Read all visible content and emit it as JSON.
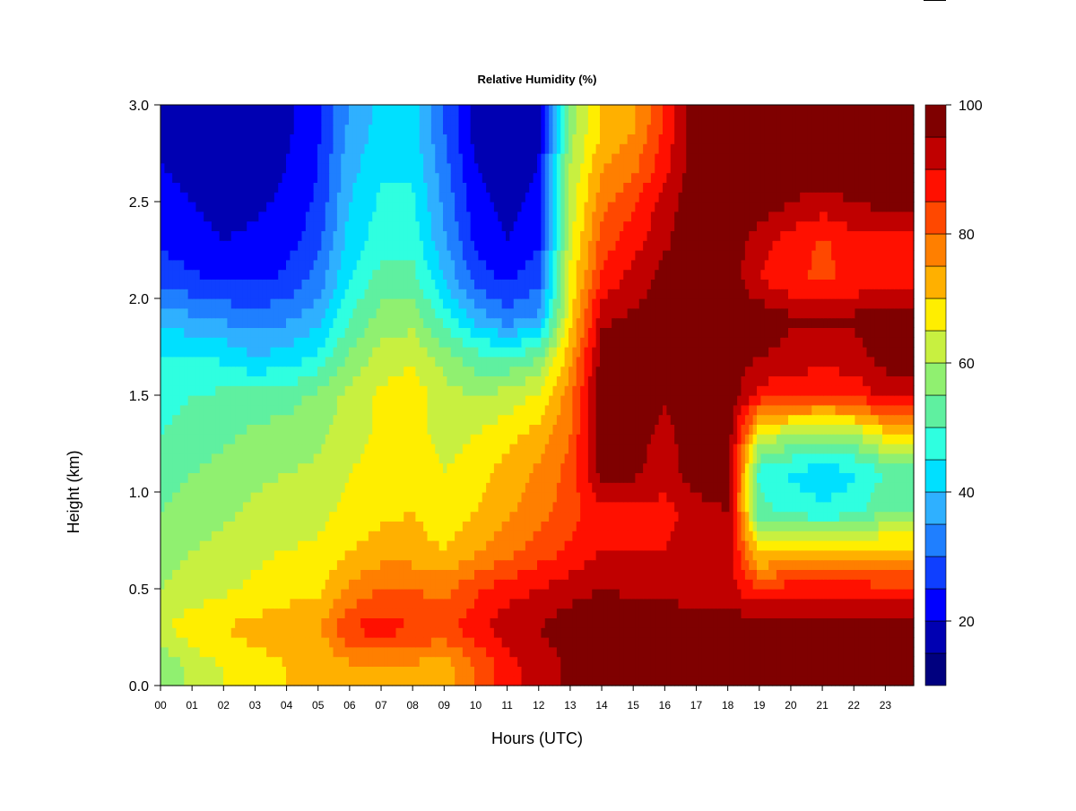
{
  "chart_data": {
    "type": "heatmap",
    "title": "Relative Humidity (%)",
    "xlabel": "Hours (UTC)",
    "ylabel": "Height (km)",
    "x_ticks": [
      "00",
      "01",
      "02",
      "03",
      "04",
      "05",
      "06",
      "07",
      "08",
      "09",
      "10",
      "11",
      "12",
      "13",
      "14",
      "15",
      "16",
      "17",
      "18",
      "19",
      "20",
      "21",
      "22",
      "23"
    ],
    "xlim": [
      0,
      23.9
    ],
    "y_ticks": [
      "0.0",
      "0.5",
      "1.0",
      "1.5",
      "2.0",
      "2.5",
      "3.0"
    ],
    "ylim": [
      0,
      3.0
    ],
    "colorbar": {
      "ticks": [
        "20",
        "40",
        "60",
        "80",
        "100"
      ],
      "range": [
        10,
        100
      ],
      "levels": [
        10,
        15,
        20,
        25,
        30,
        35,
        40,
        45,
        50,
        55,
        60,
        65,
        70,
        75,
        80,
        85,
        90,
        95,
        100
      ],
      "colors": [
        "#00007F",
        "#0000B2",
        "#0000FF",
        "#0F3FFF",
        "#1F7FFF",
        "#2FB0FF",
        "#00E0FF",
        "#2FFFE0",
        "#5FF0A0",
        "#90F070",
        "#C8F040",
        "#FFEE00",
        "#FFB000",
        "#FF7F00",
        "#FF4800",
        "#FF1000",
        "#C00000",
        "#7F0000"
      ]
    },
    "x_hours": [
      0,
      1,
      2,
      3,
      4,
      5,
      6,
      7,
      8,
      9,
      10,
      11,
      12,
      13,
      14,
      15,
      16,
      17,
      18,
      19,
      20,
      21,
      22,
      23
    ],
    "heights_km": [
      0.1,
      0.3,
      0.5,
      0.7,
      0.9,
      1.1,
      1.3,
      1.5,
      1.7,
      1.9,
      2.1,
      2.3,
      2.5,
      2.7,
      2.9
    ],
    "rh_grid": [
      [
        55,
        62,
        65,
        68,
        70,
        70,
        74,
        75,
        74,
        72,
        80,
        88,
        92,
        96,
        97,
        97,
        97,
        98,
        98,
        99,
        99,
        99,
        99,
        99
      ],
      [
        64,
        68,
        70,
        72,
        73,
        74,
        85,
        88,
        85,
        84,
        88,
        93,
        95,
        98,
        99,
        99,
        99,
        99,
        98,
        99,
        99,
        99,
        99,
        99
      ],
      [
        60,
        62,
        64,
        66,
        68,
        69,
        76,
        80,
        80,
        78,
        84,
        88,
        90,
        93,
        95,
        94,
        93,
        92,
        92,
        85,
        88,
        88,
        88,
        86
      ],
      [
        58,
        60,
        62,
        64,
        65,
        66,
        70,
        72,
        72,
        70,
        74,
        78,
        82,
        86,
        90,
        90,
        90,
        93,
        95,
        68,
        70,
        72,
        70,
        72
      ],
      [
        55,
        57,
        59,
        61,
        62,
        63,
        67,
        69,
        70,
        67,
        70,
        74,
        78,
        83,
        88,
        89,
        88,
        92,
        95,
        52,
        48,
        46,
        48,
        55
      ],
      [
        53,
        55,
        57,
        59,
        60,
        61,
        65,
        67,
        68,
        65,
        68,
        72,
        76,
        82,
        97,
        96,
        92,
        99,
        99,
        48,
        44,
        42,
        44,
        50
      ],
      [
        50,
        52,
        54,
        56,
        57,
        59,
        63,
        66,
        67,
        63,
        65,
        68,
        72,
        80,
        99,
        98,
        93,
        99,
        99,
        65,
        60,
        58,
        60,
        68
      ],
      [
        48,
        50,
        51,
        52,
        53,
        56,
        62,
        66,
        68,
        62,
        60,
        62,
        66,
        78,
        99,
        99,
        96,
        99,
        99,
        88,
        86,
        84,
        86,
        92
      ],
      [
        45,
        46,
        44,
        40,
        42,
        46,
        56,
        62,
        64,
        58,
        52,
        50,
        54,
        74,
        97,
        98,
        96,
        99,
        99,
        95,
        93,
        93,
        93,
        97
      ],
      [
        38,
        36,
        34,
        32,
        34,
        38,
        50,
        57,
        58,
        48,
        38,
        32,
        36,
        68,
        94,
        96,
        97,
        99,
        99,
        99,
        96,
        96,
        96,
        99
      ],
      [
        28,
        26,
        24,
        24,
        26,
        32,
        45,
        52,
        52,
        40,
        28,
        24,
        28,
        66,
        86,
        92,
        97,
        99,
        99,
        90,
        86,
        84,
        86,
        88
      ],
      [
        24,
        22,
        20,
        21,
        23,
        28,
        42,
        48,
        48,
        36,
        24,
        20,
        24,
        64,
        82,
        88,
        94,
        99,
        99,
        92,
        88,
        84,
        88,
        88
      ],
      [
        22,
        20,
        18,
        19,
        21,
        26,
        40,
        46,
        46,
        34,
        22,
        18,
        22,
        62,
        78,
        84,
        92,
        99,
        99,
        99,
        95,
        93,
        95,
        97
      ],
      [
        20,
        18,
        17,
        18,
        20,
        25,
        38,
        44,
        44,
        32,
        20,
        17,
        20,
        60,
        74,
        78,
        88,
        99,
        99,
        99,
        99,
        99,
        99,
        99
      ],
      [
        19,
        17,
        16,
        17,
        19,
        24,
        36,
        42,
        42,
        30,
        18,
        16,
        18,
        58,
        70,
        74,
        86,
        99,
        99,
        99,
        99,
        99,
        99,
        99
      ]
    ]
  }
}
